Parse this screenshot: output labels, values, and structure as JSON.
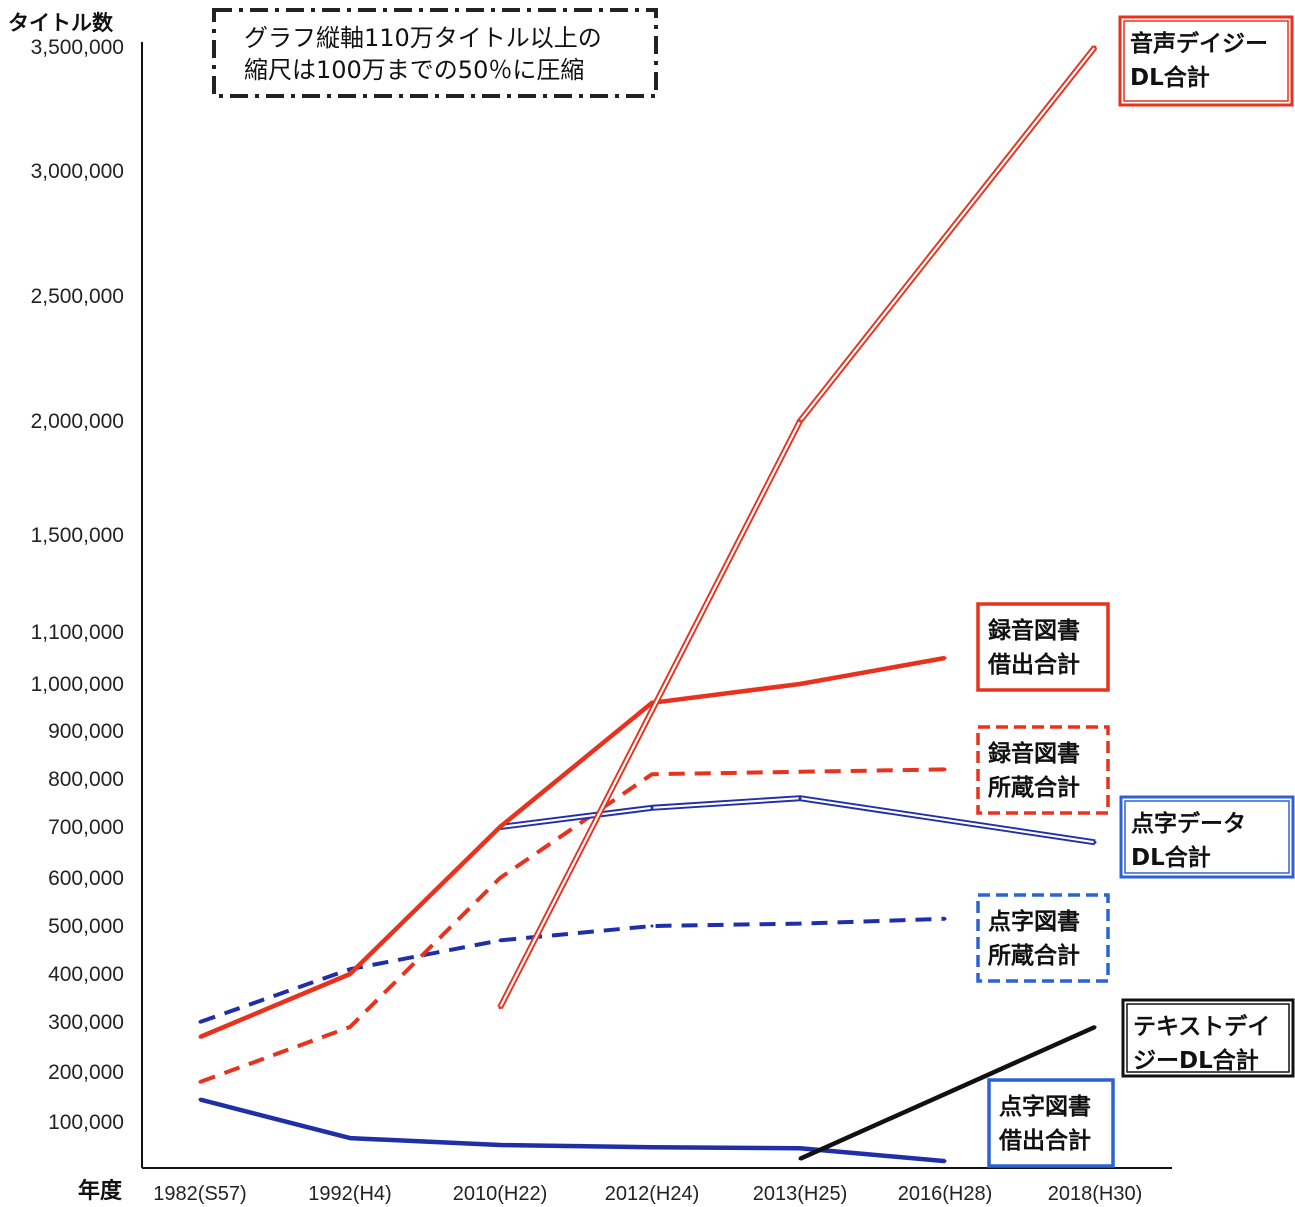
{
  "chart_data": {
    "type": "line",
    "ylabel": "タイトル数",
    "xlabel": "年度",
    "note": [
      "グラフ縦軸110万タイトル以上の",
      "縮尺は100万までの50％に圧縮"
    ],
    "categories": [
      "1982(S57)",
      "1992(H4)",
      "2010(H22)",
      "2012(H24)",
      "2013(H25)",
      "2016(H28)",
      "2018(H30)"
    ],
    "y_ticks": [
      {
        "value": 100000,
        "label": "100,000"
      },
      {
        "value": 200000,
        "label": "200,000"
      },
      {
        "value": 300000,
        "label": "300,000"
      },
      {
        "value": 400000,
        "label": "400,000"
      },
      {
        "value": 500000,
        "label": "500,000"
      },
      {
        "value": 600000,
        "label": "600,000"
      },
      {
        "value": 700000,
        "label": "700,000"
      },
      {
        "value": 800000,
        "label": "800,000"
      },
      {
        "value": 900000,
        "label": "900,000"
      },
      {
        "value": 1000000,
        "label": "1,000,000"
      },
      {
        "value": 1100000,
        "label": "1,100,000"
      },
      {
        "value": 1500000,
        "label": "1,500,000"
      },
      {
        "value": 2000000,
        "label": "2,000,000"
      },
      {
        "value": 2500000,
        "label": "2,500,000"
      },
      {
        "value": 3000000,
        "label": "3,000,000"
      },
      {
        "value": 3500000,
        "label": "3,500,000"
      }
    ],
    "y_scale": "linear below 1,100,000; compressed to 50% above 1,100,000",
    "series": [
      {
        "key": "daisy_audio",
        "name": [
          "音声デイジー",
          "DL合計"
        ],
        "color": "#e8321e",
        "style": "double",
        "box_style": "double-solid",
        "points": [
          {
            "x": "2010(H22)",
            "y": 330000
          },
          {
            "x": "2013(H25)",
            "y": 2000000
          },
          {
            "x": "2018(H30)",
            "y": 3500000
          }
        ]
      },
      {
        "key": "audio_loan",
        "name": [
          "録音図書",
          "借出合計"
        ],
        "color": "#e8321e",
        "style": "solid",
        "box_style": "solid",
        "points": [
          {
            "x": "1982(S57)",
            "y": 270000
          },
          {
            "x": "1992(H4)",
            "y": 400000
          },
          {
            "x": "2010(H22)",
            "y": 700000
          },
          {
            "x": "2012(H24)",
            "y": 960000
          },
          {
            "x": "2013(H25)",
            "y": 1000000
          },
          {
            "x": "2016(H28)",
            "y": 1050000
          }
        ]
      },
      {
        "key": "audio_holdings",
        "name": [
          "録音図書",
          "所蔵合計"
        ],
        "color": "#e8321e",
        "style": "dashed",
        "box_style": "dashed",
        "points": [
          {
            "x": "1982(S57)",
            "y": 180000
          },
          {
            "x": "1992(H4)",
            "y": 290000
          },
          {
            "x": "2010(H22)",
            "y": 600000
          },
          {
            "x": "2012(H24)",
            "y": 810000
          },
          {
            "x": "2013(H25)",
            "y": 815000
          },
          {
            "x": "2016(H28)",
            "y": 820000
          }
        ]
      },
      {
        "key": "braille_dl",
        "name": [
          "点字データ",
          "DL合計"
        ],
        "color": "#1f2fa8",
        "style": "double",
        "box_style": "double-solid",
        "points": [
          {
            "x": "2010(H22)",
            "y": 700000
          },
          {
            "x": "2012(H24)",
            "y": 740000
          },
          {
            "x": "2013(H25)",
            "y": 760000
          },
          {
            "x": "2018(H30)",
            "y": 670000
          }
        ]
      },
      {
        "key": "braille_holdings",
        "name": [
          "点字図書",
          "所蔵合計"
        ],
        "color": "#1f2fa8",
        "style": "dashed",
        "box_style": "dashed",
        "points": [
          {
            "x": "1982(S57)",
            "y": 300000
          },
          {
            "x": "1992(H4)",
            "y": 410000
          },
          {
            "x": "2010(H22)",
            "y": 470000
          },
          {
            "x": "2012(H24)",
            "y": 500000
          },
          {
            "x": "2013(H25)",
            "y": 505000
          },
          {
            "x": "2016(H28)",
            "y": 515000
          }
        ]
      },
      {
        "key": "text_daisy",
        "name": [
          "テキストデイ",
          "ジーDL合計"
        ],
        "color": "#111111",
        "style": "solid",
        "box_style": "double-solid",
        "points": [
          {
            "x": "2013(H25)",
            "y": 20000
          },
          {
            "x": "2018(H30)",
            "y": 290000
          }
        ]
      },
      {
        "key": "braille_loan",
        "name": [
          "点字図書",
          "借出合計"
        ],
        "color": "#1f2fa8",
        "style": "solid",
        "box_style": "solid",
        "points": [
          {
            "x": "1982(S57)",
            "y": 145000
          },
          {
            "x": "1992(H4)",
            "y": 65000
          },
          {
            "x": "2010(H22)",
            "y": 50000
          },
          {
            "x": "2012(H24)",
            "y": 45000
          },
          {
            "x": "2013(H25)",
            "y": 43000
          },
          {
            "x": "2016(H28)",
            "y": 15000
          }
        ]
      }
    ]
  }
}
